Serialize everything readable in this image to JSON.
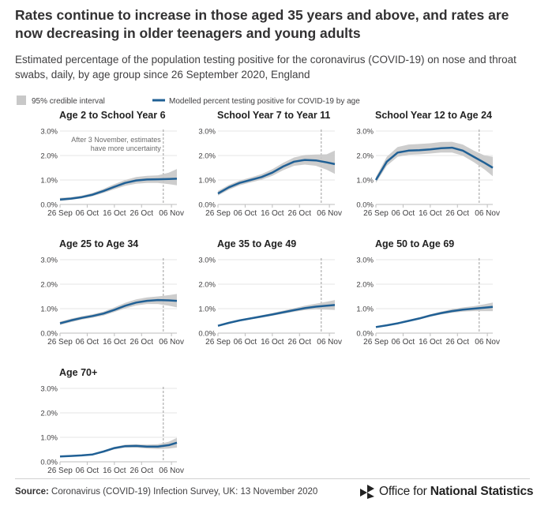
{
  "title": "Rates continue to increase in those aged 35 years and above, and rates are now decreasing in older teenagers and young adults",
  "subtitle": "Estimated percentage of the population testing positive for the coronavirus (COVID-19) on nose and throat swabs, daily, by age group since 26 September 2020, England",
  "source_label": "Source:",
  "source_text": "Coronavirus (COVID-19) Infection Survey, UK: 13 November 2020",
  "logo": {
    "prefix": "Office for ",
    "name": "National Statistics"
  },
  "colors": {
    "line": "#206095",
    "interval": "#c8c8c8",
    "axis": "#bdbdbd",
    "text": "#414042",
    "cutoff": "#9e9e9e"
  },
  "chart_data": {
    "type": "line",
    "legend": {
      "interval_label": "95% credible interval",
      "line_label": "Modelled percent testing positive for COVID-19 by age",
      "placement": "top-left"
    },
    "x_tick_labels": [
      "26 Sep",
      "06 Oct",
      "16 Oct",
      "26 Oct",
      "06 Nov"
    ],
    "y_tick_labels": [
      "0.0%",
      "1.0%",
      "2.0%",
      "3.0%"
    ],
    "ylim": [
      0,
      3.0
    ],
    "xlim": [
      "2020-09-26",
      "2020-11-08"
    ],
    "cutoff_date": "2020-11-03",
    "cutoff_note": [
      "After 3 November, estimates",
      "have more uncertainty"
    ],
    "panels": [
      {
        "title": "Age 2 to School Year 6",
        "dates": [
          "2020-09-26",
          "2020-09-30",
          "2020-10-04",
          "2020-10-08",
          "2020-10-12",
          "2020-10-16",
          "2020-10-20",
          "2020-10-24",
          "2020-10-28",
          "2020-11-01",
          "2020-11-05",
          "2020-11-08"
        ],
        "values": [
          0.2,
          0.24,
          0.3,
          0.4,
          0.55,
          0.72,
          0.88,
          0.98,
          1.02,
          1.03,
          1.04,
          1.05
        ],
        "lower": [
          0.14,
          0.19,
          0.25,
          0.34,
          0.47,
          0.62,
          0.76,
          0.85,
          0.88,
          0.88,
          0.83,
          0.78
        ],
        "upper": [
          0.27,
          0.3,
          0.36,
          0.47,
          0.64,
          0.83,
          1.0,
          1.12,
          1.17,
          1.19,
          1.3,
          1.45
        ],
        "annotate_cutoff": true
      },
      {
        "title": "School Year 7 to Year 11",
        "dates": [
          "2020-09-26",
          "2020-09-30",
          "2020-10-04",
          "2020-10-08",
          "2020-10-12",
          "2020-10-16",
          "2020-10-20",
          "2020-10-24",
          "2020-10-28",
          "2020-11-01",
          "2020-11-05",
          "2020-11-08"
        ],
        "values": [
          0.45,
          0.7,
          0.88,
          1.0,
          1.12,
          1.3,
          1.55,
          1.75,
          1.82,
          1.8,
          1.72,
          1.65
        ],
        "lower": [
          0.36,
          0.6,
          0.78,
          0.9,
          1.01,
          1.17,
          1.4,
          1.58,
          1.63,
          1.58,
          1.42,
          1.25
        ],
        "upper": [
          0.55,
          0.8,
          0.98,
          1.1,
          1.24,
          1.44,
          1.7,
          1.92,
          2.02,
          2.04,
          2.05,
          2.2
        ]
      },
      {
        "title": "School Year 12 to Age 24",
        "dates": [
          "2020-09-26",
          "2020-09-30",
          "2020-10-04",
          "2020-10-08",
          "2020-10-12",
          "2020-10-16",
          "2020-10-20",
          "2020-10-24",
          "2020-10-28",
          "2020-11-01",
          "2020-11-05",
          "2020-11-08"
        ],
        "values": [
          1.0,
          1.75,
          2.12,
          2.2,
          2.22,
          2.25,
          2.3,
          2.32,
          2.2,
          1.95,
          1.7,
          1.5
        ],
        "lower": [
          0.88,
          1.58,
          1.95,
          2.03,
          2.05,
          2.08,
          2.12,
          2.12,
          1.99,
          1.73,
          1.43,
          1.15
        ],
        "upper": [
          1.12,
          1.95,
          2.35,
          2.45,
          2.47,
          2.5,
          2.55,
          2.56,
          2.45,
          2.2,
          2.0,
          1.95
        ]
      },
      {
        "title": "Age 25 to Age 34",
        "dates": [
          "2020-09-26",
          "2020-09-30",
          "2020-10-04",
          "2020-10-08",
          "2020-10-12",
          "2020-10-16",
          "2020-10-20",
          "2020-10-24",
          "2020-10-28",
          "2020-11-01",
          "2020-11-05",
          "2020-11-08"
        ],
        "values": [
          0.4,
          0.52,
          0.62,
          0.7,
          0.8,
          0.95,
          1.12,
          1.25,
          1.32,
          1.35,
          1.34,
          1.32
        ],
        "lower": [
          0.33,
          0.45,
          0.55,
          0.63,
          0.72,
          0.86,
          1.01,
          1.13,
          1.19,
          1.19,
          1.12,
          1.05
        ],
        "upper": [
          0.47,
          0.59,
          0.69,
          0.77,
          0.88,
          1.05,
          1.24,
          1.38,
          1.46,
          1.5,
          1.55,
          1.6
        ]
      },
      {
        "title": "Age 35 to Age 49",
        "dates": [
          "2020-09-26",
          "2020-09-30",
          "2020-10-04",
          "2020-10-08",
          "2020-10-12",
          "2020-10-16",
          "2020-10-20",
          "2020-10-24",
          "2020-10-28",
          "2020-11-01",
          "2020-11-05",
          "2020-11-08"
        ],
        "values": [
          0.3,
          0.42,
          0.52,
          0.6,
          0.68,
          0.76,
          0.85,
          0.94,
          1.02,
          1.08,
          1.12,
          1.15
        ],
        "lower": [
          0.26,
          0.38,
          0.48,
          0.56,
          0.63,
          0.71,
          0.79,
          0.87,
          0.94,
          0.97,
          0.96,
          0.95
        ],
        "upper": [
          0.34,
          0.46,
          0.56,
          0.64,
          0.73,
          0.82,
          0.92,
          1.02,
          1.12,
          1.2,
          1.28,
          1.35
        ]
      },
      {
        "title": "Age 50 to Age 69",
        "dates": [
          "2020-09-26",
          "2020-09-30",
          "2020-10-04",
          "2020-10-08",
          "2020-10-12",
          "2020-10-16",
          "2020-10-20",
          "2020-10-24",
          "2020-10-28",
          "2020-11-01",
          "2020-11-05",
          "2020-11-08"
        ],
        "values": [
          0.25,
          0.32,
          0.4,
          0.5,
          0.6,
          0.72,
          0.82,
          0.9,
          0.96,
          1.0,
          1.04,
          1.07
        ],
        "lower": [
          0.22,
          0.29,
          0.37,
          0.46,
          0.56,
          0.67,
          0.76,
          0.83,
          0.88,
          0.9,
          0.9,
          0.9
        ],
        "upper": [
          0.28,
          0.35,
          0.43,
          0.54,
          0.65,
          0.77,
          0.88,
          0.98,
          1.05,
          1.1,
          1.18,
          1.25
        ]
      },
      {
        "title": "Age 70+",
        "dates": [
          "2020-09-26",
          "2020-09-30",
          "2020-10-04",
          "2020-10-08",
          "2020-10-12",
          "2020-10-16",
          "2020-10-20",
          "2020-10-24",
          "2020-10-28",
          "2020-11-01",
          "2020-11-05",
          "2020-11-08"
        ],
        "values": [
          0.22,
          0.24,
          0.26,
          0.3,
          0.42,
          0.56,
          0.64,
          0.65,
          0.62,
          0.62,
          0.68,
          0.78
        ],
        "lower": [
          0.19,
          0.21,
          0.23,
          0.27,
          0.38,
          0.51,
          0.58,
          0.58,
          0.54,
          0.52,
          0.54,
          0.58
        ],
        "upper": [
          0.25,
          0.27,
          0.29,
          0.33,
          0.46,
          0.61,
          0.7,
          0.72,
          0.7,
          0.72,
          0.82,
          0.98
        ]
      }
    ]
  }
}
